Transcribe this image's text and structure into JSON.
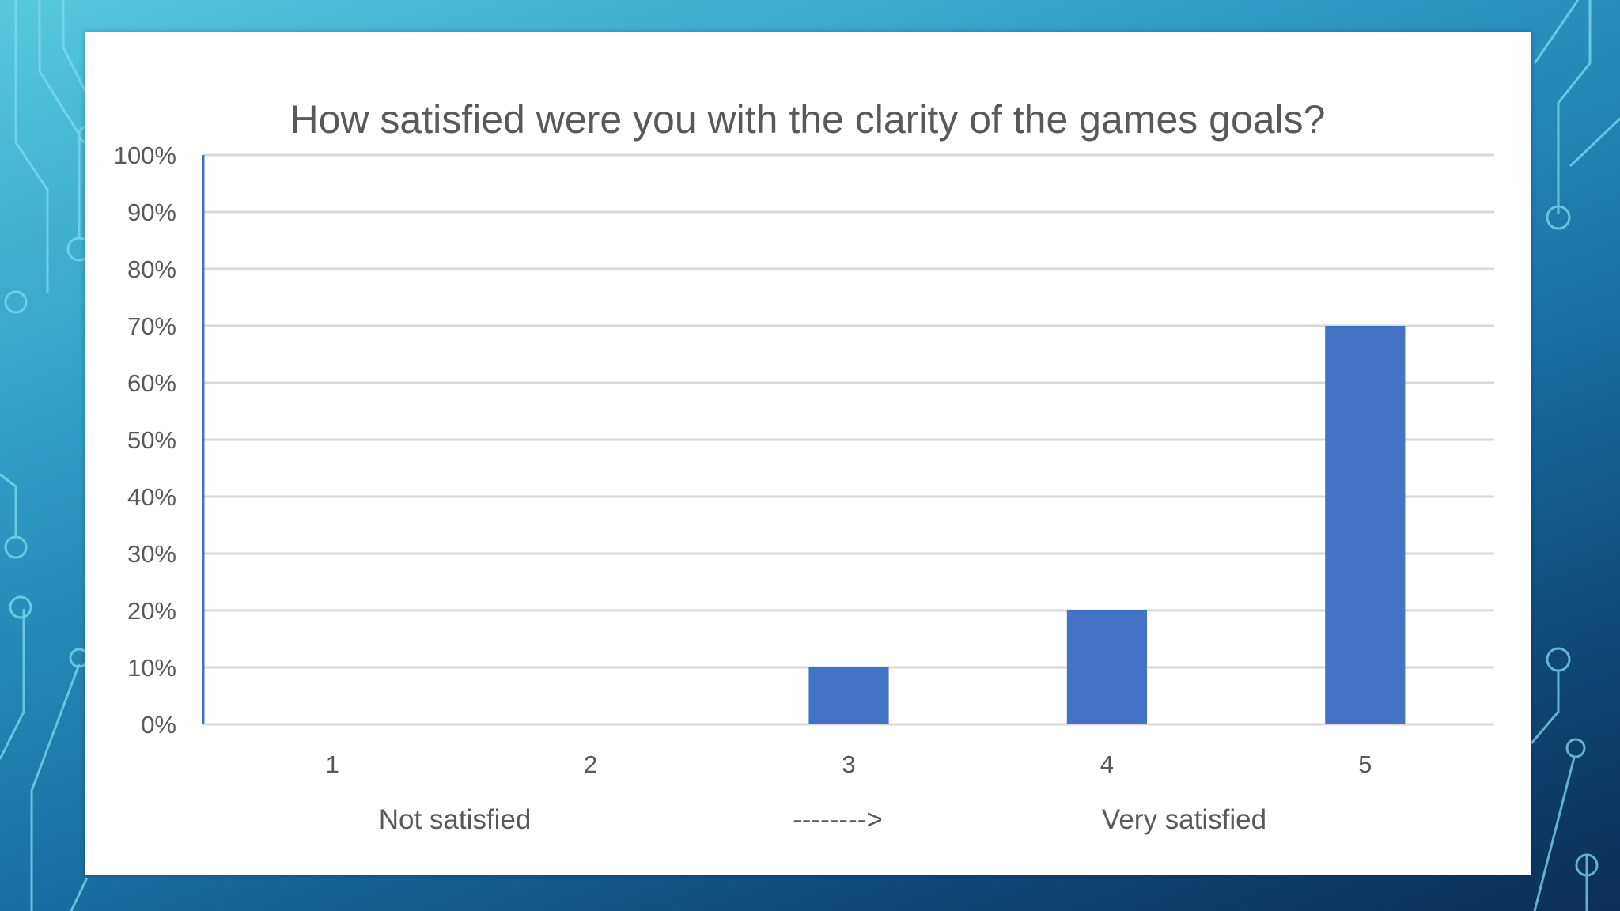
{
  "slide": {
    "accent_color": "#4472c4",
    "background_colors": [
      "#56c8de",
      "#1a6fa3",
      "#0b2f57"
    ]
  },
  "chart_data": {
    "type": "bar",
    "title": "How satisfied were you with the clarity of the games goals?",
    "categories": [
      "1",
      "2",
      "3",
      "4",
      "5"
    ],
    "values": [
      0,
      0,
      10,
      20,
      70
    ],
    "value_unit": "%",
    "ylim": [
      0,
      100
    ],
    "y_ticks": [
      "0%",
      "10%",
      "20%",
      "30%",
      "40%",
      "50%",
      "60%",
      "70%",
      "80%",
      "90%",
      "100%"
    ],
    "grid": true,
    "bar_color": "#4472c4",
    "scale_labels": {
      "left": "Not satisfied",
      "middle": "-------->",
      "right": "Very satisfied"
    }
  }
}
